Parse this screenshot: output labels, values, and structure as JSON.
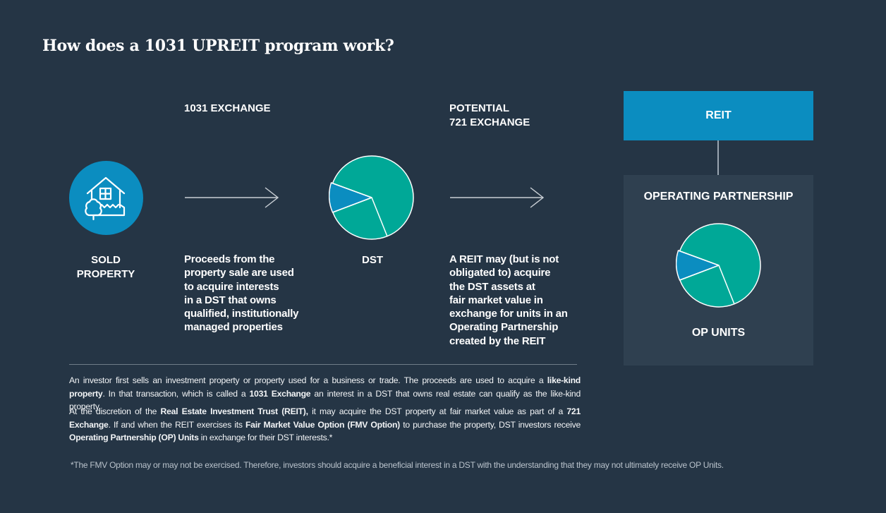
{
  "title": "How does a 1031 UPREIT program work?",
  "steps": {
    "sold": {
      "label_line1": "SOLD",
      "label_line2": "PROPERTY",
      "icon": "house-icon"
    },
    "exchange1031": {
      "heading": "1031 EXCHANGE",
      "desc": [
        "Proceeds from the",
        "property sale are used",
        "to acquire interests",
        "in a DST that owns",
        "qualified, institutionally",
        "managed properties"
      ]
    },
    "dst": {
      "label": "DST"
    },
    "exchange721": {
      "heading_line1": "POTENTIAL",
      "heading_line2": "721 EXCHANGE",
      "desc": [
        "A REIT may (but is not",
        "obligated to) acquire",
        "the DST assets at",
        "fair market value in",
        "exchange for units in an",
        "Operating Partnership",
        "created by the REIT"
      ]
    },
    "reit": {
      "label": "REIT"
    },
    "op": {
      "title": "OPERATING PARTNERSHIP",
      "units_label": "OP UNITS"
    }
  },
  "paragraph1": {
    "p1": "An investor first sells an investment property or property used for a business or trade. The proceeds are used to acquire a ",
    "b1": "like-kind property",
    "p2": ". In that transaction, which is called a ",
    "b2": "1031 Exchange",
    "p3": " an interest in a DST that owns real estate can qualify as the like-kind property."
  },
  "paragraph2": {
    "p1": "At the discretion of the ",
    "b1": "Real Estate Investment Trust (REIT),",
    "p2": " it may acquire the DST property at fair market value as part of a ",
    "b2": "721 Exchange",
    "p3": ". If and when the REIT exercises its ",
    "b3": "Fair Market Value Option (FMV Option)",
    "p4": " to purchase the property, DST investors receive ",
    "b4": "Operating Partnership (OP) Units",
    "p5": " in exchange for their DST interests.*"
  },
  "footnote": "*The FMV Option may or may not be exercised. Therefore, investors should acquire a beneficial interest in a DST with the understanding that they may not ultimately receive OP Units.",
  "colors": {
    "background": "#253545",
    "accent_blue": "#0b8dc0",
    "teal": "#00a897",
    "panel": "#2f4050"
  }
}
